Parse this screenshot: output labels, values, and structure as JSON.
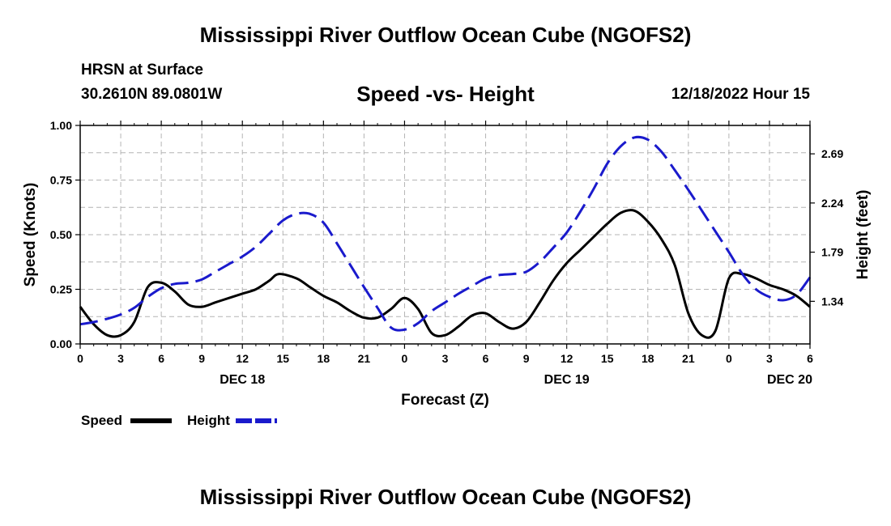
{
  "header": {
    "main_title": "Mississippi River Outflow Ocean Cube (NGOFS2)",
    "station_name": "HRSN at Surface",
    "station_coords": "30.2610N  89.0801W",
    "chart_subtitle": "Speed -vs- Height",
    "date": "12/18/2022 Hour 15"
  },
  "footer": {
    "title": "Mississippi River Outflow Ocean Cube (NGOFS2)"
  },
  "colors": {
    "speed": "#000000",
    "height": "#1a1acc",
    "grid": "#b4b4b4"
  },
  "chart_data": {
    "type": "line",
    "title": "Speed -vs- Height",
    "xlabel": "Forecast (Z)",
    "ylabel": "Speed (Knots)",
    "y2label": "Height (feet)",
    "xlim": [
      0,
      54
    ],
    "ylim": [
      0,
      1.0
    ],
    "y2lim": [
      0.95,
      2.95
    ],
    "x_ticks": [
      0,
      3,
      6,
      9,
      12,
      15,
      18,
      21,
      24,
      27,
      30,
      33,
      36,
      39,
      42,
      45,
      48,
      51,
      54
    ],
    "x_tick_labels": [
      "0",
      "3",
      "6",
      "9",
      "12",
      "15",
      "18",
      "21",
      "0",
      "3",
      "6",
      "9",
      "12",
      "15",
      "18",
      "21",
      "0",
      "3",
      "6"
    ],
    "day_labels": [
      {
        "x": 12,
        "label": "DEC 18"
      },
      {
        "x": 36,
        "label": "DEC 19"
      },
      {
        "x": 52.5,
        "label": "DEC 20"
      }
    ],
    "y_ticks": [
      0,
      0.25,
      0.5,
      0.75,
      1.0
    ],
    "y_tick_labels": [
      "0.00",
      "0.25",
      "0.50",
      "0.75",
      "1.00"
    ],
    "y2_ticks": [
      1.34,
      1.79,
      2.24,
      2.69
    ],
    "y2_tick_labels": [
      "1.34",
      "1.79",
      "2.24",
      "2.69"
    ],
    "legend": [
      "Speed",
      "Height"
    ],
    "series": [
      {
        "name": "Speed",
        "axis": "left",
        "x": [
          0,
          1,
          2,
          3,
          4,
          5,
          6,
          7,
          8,
          9,
          10,
          11,
          12,
          13,
          14,
          14.7,
          16,
          17,
          18,
          19,
          20,
          21,
          22,
          23,
          24,
          25,
          26,
          27,
          28,
          29,
          30,
          31,
          32,
          33,
          34,
          35,
          36,
          37,
          38,
          39,
          40,
          41,
          42,
          43,
          44,
          45,
          46,
          47,
          48,
          49,
          50,
          51,
          52,
          53,
          54
        ],
        "values": [
          0.17,
          0.09,
          0.04,
          0.04,
          0.1,
          0.26,
          0.28,
          0.24,
          0.18,
          0.17,
          0.19,
          0.21,
          0.23,
          0.25,
          0.29,
          0.32,
          0.3,
          0.26,
          0.22,
          0.19,
          0.15,
          0.12,
          0.12,
          0.16,
          0.21,
          0.16,
          0.05,
          0.04,
          0.08,
          0.13,
          0.14,
          0.1,
          0.07,
          0.1,
          0.19,
          0.29,
          0.37,
          0.43,
          0.49,
          0.55,
          0.6,
          0.61,
          0.56,
          0.48,
          0.36,
          0.14,
          0.04,
          0.06,
          0.3,
          0.32,
          0.3,
          0.27,
          0.25,
          0.22,
          0.17
        ]
      },
      {
        "name": "Height",
        "axis": "right",
        "x": [
          0,
          1,
          2,
          3,
          4,
          5,
          6,
          7,
          8,
          9,
          10,
          11,
          12,
          13,
          14,
          15,
          16,
          17,
          18,
          19,
          20,
          21,
          22,
          23,
          24,
          25,
          26,
          27,
          28,
          29,
          30,
          31,
          32,
          33,
          34,
          35,
          36,
          37,
          38,
          39,
          40,
          41,
          42,
          43,
          44,
          45,
          46,
          47,
          48,
          49,
          50,
          51,
          52,
          53,
          54
        ],
        "values": [
          1.13,
          1.15,
          1.18,
          1.22,
          1.28,
          1.38,
          1.46,
          1.5,
          1.51,
          1.54,
          1.61,
          1.68,
          1.75,
          1.84,
          1.96,
          2.08,
          2.14,
          2.14,
          2.06,
          1.87,
          1.67,
          1.47,
          1.28,
          1.1,
          1.08,
          1.14,
          1.25,
          1.33,
          1.41,
          1.48,
          1.55,
          1.58,
          1.59,
          1.61,
          1.7,
          1.83,
          1.97,
          2.16,
          2.37,
          2.6,
          2.76,
          2.84,
          2.82,
          2.71,
          2.54,
          2.36,
          2.17,
          1.98,
          1.79,
          1.59,
          1.45,
          1.38,
          1.35,
          1.4,
          1.56
        ]
      }
    ]
  }
}
